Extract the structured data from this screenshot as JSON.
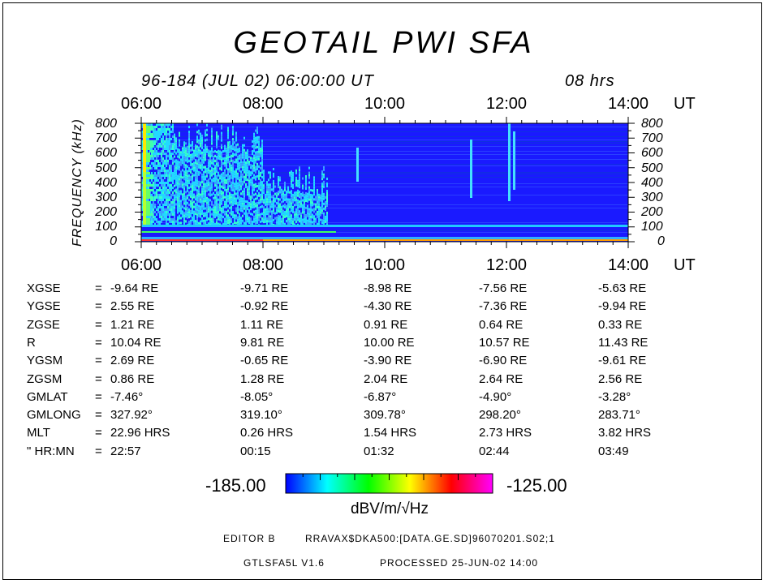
{
  "title": "GEOTAIL PWI SFA",
  "subtitle": "96-184 (JUL 02) 06:00:00 UT",
  "duration": "08 hrs",
  "chart_data": {
    "type": "heatmap",
    "xlabel": "UT",
    "ylabel": "FREQUENCY (kHz)",
    "x_ticks": [
      "06:00",
      "08:00",
      "10:00",
      "12:00",
      "14:00"
    ],
    "x_range_hours": [
      6,
      14
    ],
    "y_ticks": [
      "0",
      "100",
      "200",
      "300",
      "400",
      "500",
      "600",
      "700",
      "800"
    ],
    "ylim": [
      0,
      800
    ],
    "colorbar": {
      "min": "-185.00",
      "max": "-125.00",
      "unit": "dBV/m/√Hz",
      "colors": [
        "#0000ff",
        "#00ffff",
        "#00ff00",
        "#ffff00",
        "#ff0000",
        "#ff00ff"
      ]
    }
  },
  "orbit": {
    "rows": [
      {
        "label": "XGSE",
        "values": [
          "-9.64 RE",
          "-9.71 RE",
          "-8.98 RE",
          "-7.56 RE",
          "-5.63 RE"
        ]
      },
      {
        "label": "YGSE",
        "values": [
          "2.55 RE",
          "-0.92 RE",
          "-4.30 RE",
          "-7.36 RE",
          "-9.94 RE"
        ]
      },
      {
        "label": "ZGSE",
        "values": [
          "1.21 RE",
          "1.11 RE",
          "0.91 RE",
          "0.64 RE",
          "0.33 RE"
        ]
      },
      {
        "label": "R",
        "values": [
          "10.04 RE",
          "9.81 RE",
          "10.00 RE",
          "10.57 RE",
          "11.43 RE"
        ]
      },
      {
        "label": "YGSM",
        "values": [
          "2.69 RE",
          "-0.65 RE",
          "-3.90 RE",
          "-6.90 RE",
          "-9.61 RE"
        ]
      },
      {
        "label": "ZGSM",
        "values": [
          "0.86 RE",
          "1.28 RE",
          "2.04 RE",
          "2.64 RE",
          "2.56 RE"
        ]
      },
      {
        "label": "GMLAT",
        "values": [
          "-7.46°",
          "-8.05°",
          "-6.87°",
          "-4.90°",
          "-3.28°"
        ]
      },
      {
        "label": "GMLONG",
        "values": [
          "327.92°",
          "319.10°",
          "309.78°",
          "298.20°",
          "283.71°"
        ]
      },
      {
        "label": "MLT",
        "values": [
          "22.96 HRS",
          "0.26 HRS",
          "1.54 HRS",
          "2.73 HRS",
          "3.82 HRS"
        ]
      },
      {
        "label": "\" HR:MN",
        "values": [
          "22:57",
          "00:15",
          "01:32",
          "02:44",
          "03:49"
        ]
      }
    ]
  },
  "footer": {
    "editor": "EDITOR B",
    "file": "RRAVAX$DKA500:[DATA.GE.SD]96070201.S02;1",
    "version": "GTLSFA5L V1.6",
    "processed": "PROCESSED 25-JUN-02  14:00"
  }
}
